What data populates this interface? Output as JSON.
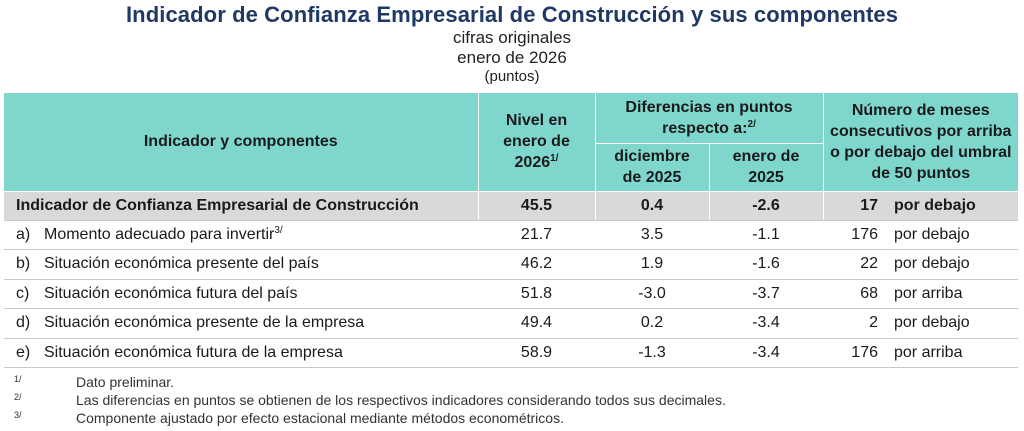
{
  "title": "Indicador de Confianza Empresarial de Construcción y sus componentes",
  "subtitle": "cifras originales",
  "period": "enero de 2026",
  "units": "(puntos)",
  "header": {
    "col_indicator": "Indicador y componentes",
    "col_level": "Nivel en enero de 2026",
    "col_level_sup": "1/",
    "col_diff": "Diferencias en puntos respecto a:",
    "col_diff_sup": "2/",
    "col_diff_dec": "diciembre de 2025",
    "col_diff_jan": "enero de 2025",
    "col_months": "Número de meses consecutivos por arriba o por debajo del umbral de 50 puntos"
  },
  "main_row": {
    "name": "Indicador de Confianza Empresarial de Construcción",
    "level": "45.5",
    "diff_dec": "0.4",
    "diff_jan": "-2.6",
    "months": "17",
    "direction": "por debajo"
  },
  "rows": [
    {
      "letter": "a)",
      "name": "Momento adecuado para invertir",
      "sup": "3/",
      "level": "21.7",
      "diff_dec": "3.5",
      "diff_jan": "-1.1",
      "months": "176",
      "direction": "por debajo"
    },
    {
      "letter": "b)",
      "name": "Situación económica presente del país",
      "sup": "",
      "level": "46.2",
      "diff_dec": "1.9",
      "diff_jan": "-1.6",
      "months": "22",
      "direction": "por debajo"
    },
    {
      "letter": "c)",
      "name": "Situación económica futura del país",
      "sup": "",
      "level": "51.8",
      "diff_dec": "-3.0",
      "diff_jan": "-3.7",
      "months": "68",
      "direction": "por arriba"
    },
    {
      "letter": "d)",
      "name": "Situación económica presente de la empresa",
      "sup": "",
      "level": "49.4",
      "diff_dec": "0.2",
      "diff_jan": "-3.4",
      "months": "2",
      "direction": "por debajo"
    },
    {
      "letter": "e)",
      "name": "Situación económica futura de la empresa",
      "sup": "",
      "level": "58.9",
      "diff_dec": "-1.3",
      "diff_jan": "-3.4",
      "months": "176",
      "direction": "por arriba"
    }
  ],
  "footnotes": [
    {
      "mark": "1/",
      "text": "Dato preliminar."
    },
    {
      "mark": "2/",
      "text": "Las diferencias en puntos se obtienen de los respectivos indicadores considerando todos sus decimales."
    },
    {
      "mark": "3/",
      "text": "Componente ajustado por efecto estacional mediante métodos econométricos."
    }
  ]
}
